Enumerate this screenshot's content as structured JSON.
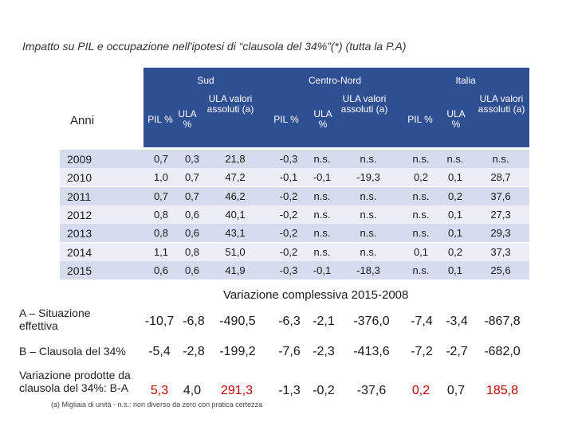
{
  "title": "Impatto su PIL e occupazione nell'ipotesi di “clausola del 34%”(*) (tutta la P.A)",
  "header": {
    "anni": "Anni",
    "regions": [
      "Sud",
      "Centro-Nord",
      "Italia"
    ],
    "cols": [
      "PIL %",
      "ULA %",
      "ULA valori assoluti (a)"
    ]
  },
  "rows": [
    {
      "year": "2009",
      "values": [
        "0,7",
        "0,3",
        "21,8",
        "-0,3",
        "n.s.",
        "n.s.",
        "n.s.",
        "n.s.",
        "n.s."
      ]
    },
    {
      "year": "2010",
      "values": [
        "1,0",
        "0,7",
        "47,2",
        "-0,1",
        "-0,1",
        "-19,3",
        "0,2",
        "0,1",
        "28,7"
      ]
    },
    {
      "year": "2011",
      "values": [
        "0,7",
        "0,7",
        "46,2",
        "-0,2",
        "n.s.",
        "n.s.",
        "n.s.",
        "0,2",
        "37,6"
      ]
    },
    {
      "year": "2012",
      "values": [
        "0,8",
        "0,6",
        "40,1",
        "-0,2",
        "n.s.",
        "n.s.",
        "n.s.",
        "0,1",
        "27,3"
      ]
    },
    {
      "year": "2013",
      "values": [
        "0,8",
        "0,6",
        "43,1",
        "-0,2",
        "n.s.",
        "n.s.",
        "n.s.",
        "0,1",
        "29,3"
      ]
    },
    {
      "year": "2014",
      "values": [
        "1,1",
        "0,8",
        "51,0",
        "-0,2",
        "n.s.",
        "n.s.",
        "0,1",
        "0,2",
        "37,3"
      ]
    },
    {
      "year": "2015",
      "values": [
        "0,6",
        "0,6",
        "41,9",
        "-0,3",
        "-0,1",
        "-18,3",
        "n.s.",
        "0,1",
        "25,6"
      ]
    }
  ],
  "variation": {
    "heading": "Variazione complessiva 2015-2008",
    "rows": [
      {
        "label": "A – Situazione effettiva",
        "values": [
          "-10,7",
          "-6,8",
          "-490,5",
          "-6,3",
          "-2,1",
          "-376,0",
          "-7,4",
          "-3,4",
          "-867,8"
        ]
      },
      {
        "label": "B – Clausola del 34%",
        "values": [
          "-5,4",
          "-2,8",
          "-199,2",
          "-7,6",
          "-2,3",
          "-413,6",
          "-7,2",
          "-2,7",
          "-682,0"
        ]
      },
      {
        "label": "Variazione prodotte da clausola del 34%: B-A",
        "values": [
          "5,3",
          "4,0",
          "291,3",
          "-1,3",
          "-0,2",
          "-37,6",
          "0,2",
          "0,7",
          "185,8"
        ]
      }
    ]
  },
  "footnote": "(a) Migliaia di unità - n.s.: non diverso da zero con pratica certezza",
  "colors": {
    "header_bg": "#2f4f93",
    "band_odd": "#d6dced",
    "band_even": "#ebeef6",
    "highlight": "#c00000"
  }
}
